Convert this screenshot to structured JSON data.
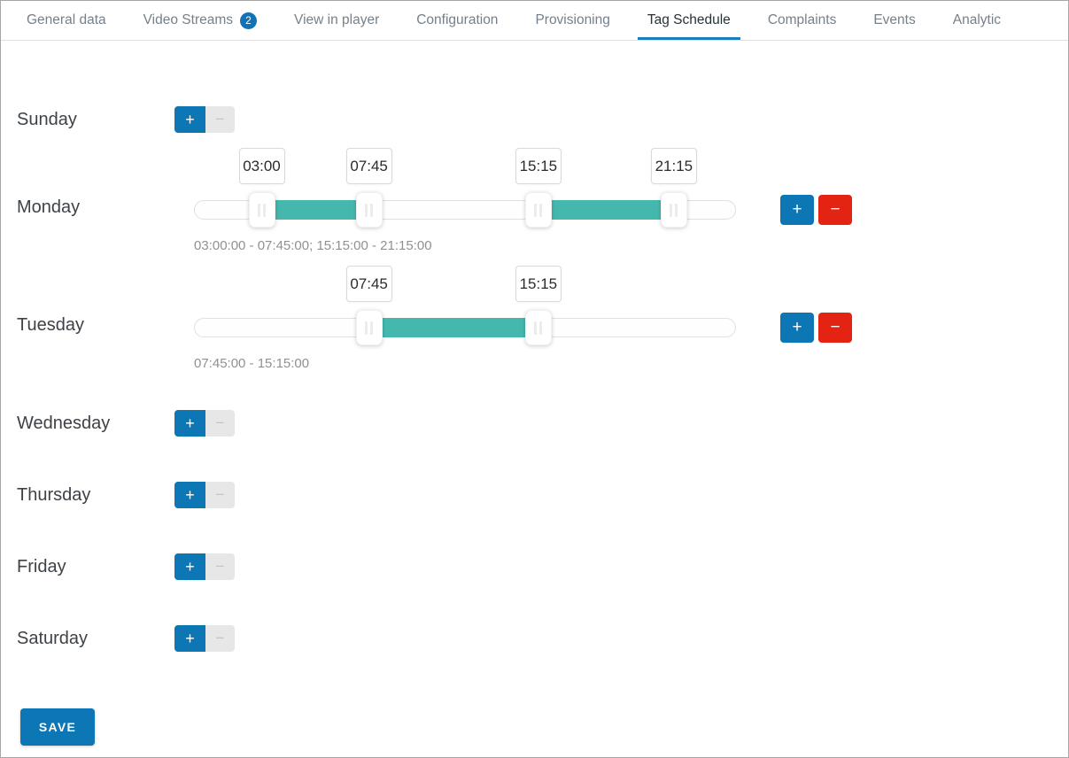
{
  "tabs": [
    {
      "label": "General data"
    },
    {
      "label": "Video Streams",
      "badge": "2"
    },
    {
      "label": "View in player"
    },
    {
      "label": "Configuration"
    },
    {
      "label": "Provisioning"
    },
    {
      "label": "Tag Schedule",
      "active": true
    },
    {
      "label": "Complaints"
    },
    {
      "label": "Events"
    },
    {
      "label": "Analytic"
    }
  ],
  "days": [
    {
      "label": "Sunday",
      "has_schedule": false
    },
    {
      "label": "Monday",
      "has_schedule": true,
      "ranges": [
        {
          "from": "03:00",
          "to": "07:45"
        },
        {
          "from": "15:15",
          "to": "21:15"
        }
      ],
      "summary": "03:00:00 - 07:45:00; 15:15:00 - 21:15:00"
    },
    {
      "label": "Tuesday",
      "has_schedule": true,
      "ranges": [
        {
          "from": "07:45",
          "to": "15:15"
        }
      ],
      "summary": "07:45:00 - 15:15:00"
    },
    {
      "label": "Wednesday",
      "has_schedule": false
    },
    {
      "label": "Thursday",
      "has_schedule": false
    },
    {
      "label": "Friday",
      "has_schedule": false
    },
    {
      "label": "Saturday",
      "has_schedule": false
    }
  ],
  "controls": {
    "add_label": "+",
    "remove_label": "−",
    "save_label": "SAVE"
  },
  "slider": {
    "scale_start": "00:00",
    "scale_end": "24:00"
  },
  "colors": {
    "accent_blue": "#0d76b5",
    "danger_red": "#e32412",
    "range_teal": "#45b8ad",
    "active_tab_underline": "#1c7cc0",
    "disabled_gray": "#e7e7e7"
  }
}
